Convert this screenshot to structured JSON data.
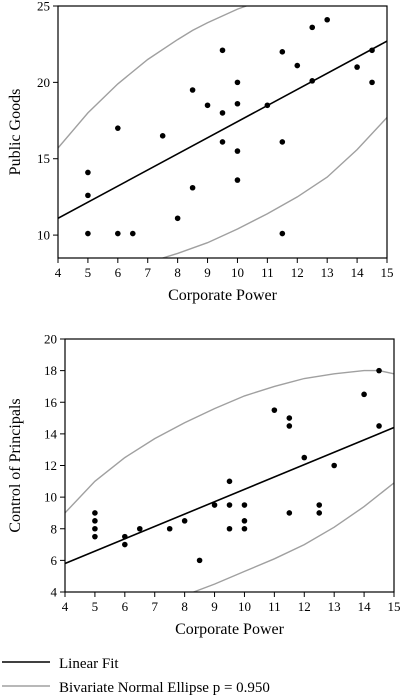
{
  "chart_data": [
    {
      "type": "scatter",
      "xlabel": "Corporate Power",
      "ylabel": "Public Goods",
      "xlim": [
        4,
        15
      ],
      "ylim": [
        8.5,
        25
      ],
      "xticks": [
        "4",
        "5",
        "6",
        "7",
        "8",
        "9",
        "10",
        "11",
        "12",
        "13",
        "14",
        "15"
      ],
      "yticks": [
        "10",
        "15",
        "20",
        "25"
      ],
      "points": [
        [
          5,
          14.1
        ],
        [
          5,
          12.6
        ],
        [
          5,
          10.1
        ],
        [
          6,
          17
        ],
        [
          6,
          10.1
        ],
        [
          6.5,
          10.1
        ],
        [
          7.5,
          16.5
        ],
        [
          8,
          11.1
        ],
        [
          8.5,
          19.5
        ],
        [
          8.5,
          13.1
        ],
        [
          9,
          18.5
        ],
        [
          9.5,
          22.1
        ],
        [
          9.5,
          18
        ],
        [
          9.5,
          16.1
        ],
        [
          10,
          20
        ],
        [
          10,
          18.6
        ],
        [
          10,
          15.5
        ],
        [
          10,
          13.6
        ],
        [
          11,
          18.5
        ],
        [
          11.5,
          22
        ],
        [
          11.5,
          16.1
        ],
        [
          11.5,
          10.1
        ],
        [
          12,
          21.1
        ],
        [
          12.5,
          23.6
        ],
        [
          12.5,
          20.1
        ],
        [
          13,
          24.1
        ],
        [
          14,
          21
        ],
        [
          14.5,
          22.1
        ],
        [
          14.5,
          20
        ]
      ],
      "fit_line": [
        [
          4,
          11.1
        ],
        [
          15,
          22.7
        ]
      ],
      "ellipse_upper": [
        [
          4,
          15.7
        ],
        [
          5,
          18
        ],
        [
          6,
          19.9
        ],
        [
          7,
          21.5
        ],
        [
          8,
          22.8
        ],
        [
          8.5,
          23.4
        ],
        [
          9,
          23.9
        ],
        [
          10,
          24.8
        ],
        [
          10.3,
          25
        ]
      ],
      "ellipse_lower": [
        [
          7.5,
          8.5
        ],
        [
          8,
          8.8
        ],
        [
          9,
          9.5
        ],
        [
          10,
          10.4
        ],
        [
          11,
          11.4
        ],
        [
          12,
          12.5
        ],
        [
          13,
          13.8
        ],
        [
          14,
          15.6
        ],
        [
          15,
          17.7
        ]
      ]
    },
    {
      "type": "scatter",
      "xlabel": "Corporate Power",
      "ylabel": "Control of Principals",
      "xlim": [
        4,
        15
      ],
      "ylim": [
        4,
        20
      ],
      "xticks": [
        "4",
        "5",
        "6",
        "7",
        "8",
        "9",
        "10",
        "11",
        "12",
        "13",
        "14",
        "15"
      ],
      "yticks": [
        "4",
        "6",
        "8",
        "10",
        "12",
        "14",
        "16",
        "18",
        "20"
      ],
      "points": [
        [
          5,
          9
        ],
        [
          5,
          8.5
        ],
        [
          5,
          8
        ],
        [
          5,
          7.5
        ],
        [
          6,
          7.5
        ],
        [
          6,
          7
        ],
        [
          6.5,
          8
        ],
        [
          7.5,
          8
        ],
        [
          8,
          8.5
        ],
        [
          8.5,
          6
        ],
        [
          9,
          9.5
        ],
        [
          9.5,
          11
        ],
        [
          9.5,
          9.5
        ],
        [
          9.5,
          8
        ],
        [
          10,
          9.5
        ],
        [
          10,
          8.5
        ],
        [
          10,
          8
        ],
        [
          11,
          15.5
        ],
        [
          11.5,
          15
        ],
        [
          11.5,
          14.5
        ],
        [
          11.5,
          9
        ],
        [
          12,
          12.5
        ],
        [
          12.5,
          9.5
        ],
        [
          12.5,
          9
        ],
        [
          13,
          12
        ],
        [
          14,
          16.5
        ],
        [
          14.5,
          18
        ],
        [
          14.5,
          14.5
        ]
      ],
      "fit_line": [
        [
          4,
          5.8
        ],
        [
          15,
          14.4
        ]
      ],
      "ellipse_upper": [
        [
          4,
          9
        ],
        [
          5,
          11
        ],
        [
          6,
          12.5
        ],
        [
          7,
          13.7
        ],
        [
          8,
          14.7
        ],
        [
          9,
          15.6
        ],
        [
          10,
          16.4
        ],
        [
          11,
          17
        ],
        [
          12,
          17.5
        ],
        [
          13,
          17.8
        ],
        [
          14,
          18
        ],
        [
          14.5,
          18
        ],
        [
          15,
          17.8
        ]
      ],
      "ellipse_lower": [
        [
          8.3,
          4
        ],
        [
          9,
          4.5
        ],
        [
          10,
          5.3
        ],
        [
          11,
          6.1
        ],
        [
          12,
          7
        ],
        [
          13,
          8.1
        ],
        [
          14,
          9.4
        ],
        [
          15,
          10.9
        ]
      ]
    }
  ],
  "legend": {
    "items": [
      {
        "label": "Linear Fit",
        "color": "#000000"
      },
      {
        "label": "Bivariate Normal Ellipse p = 0.950",
        "color": "#a0a0a0"
      }
    ]
  },
  "colors": {
    "points": "#000000",
    "fit_line": "#000000",
    "ellipse": "#a0a0a0",
    "frame": "#000000"
  }
}
